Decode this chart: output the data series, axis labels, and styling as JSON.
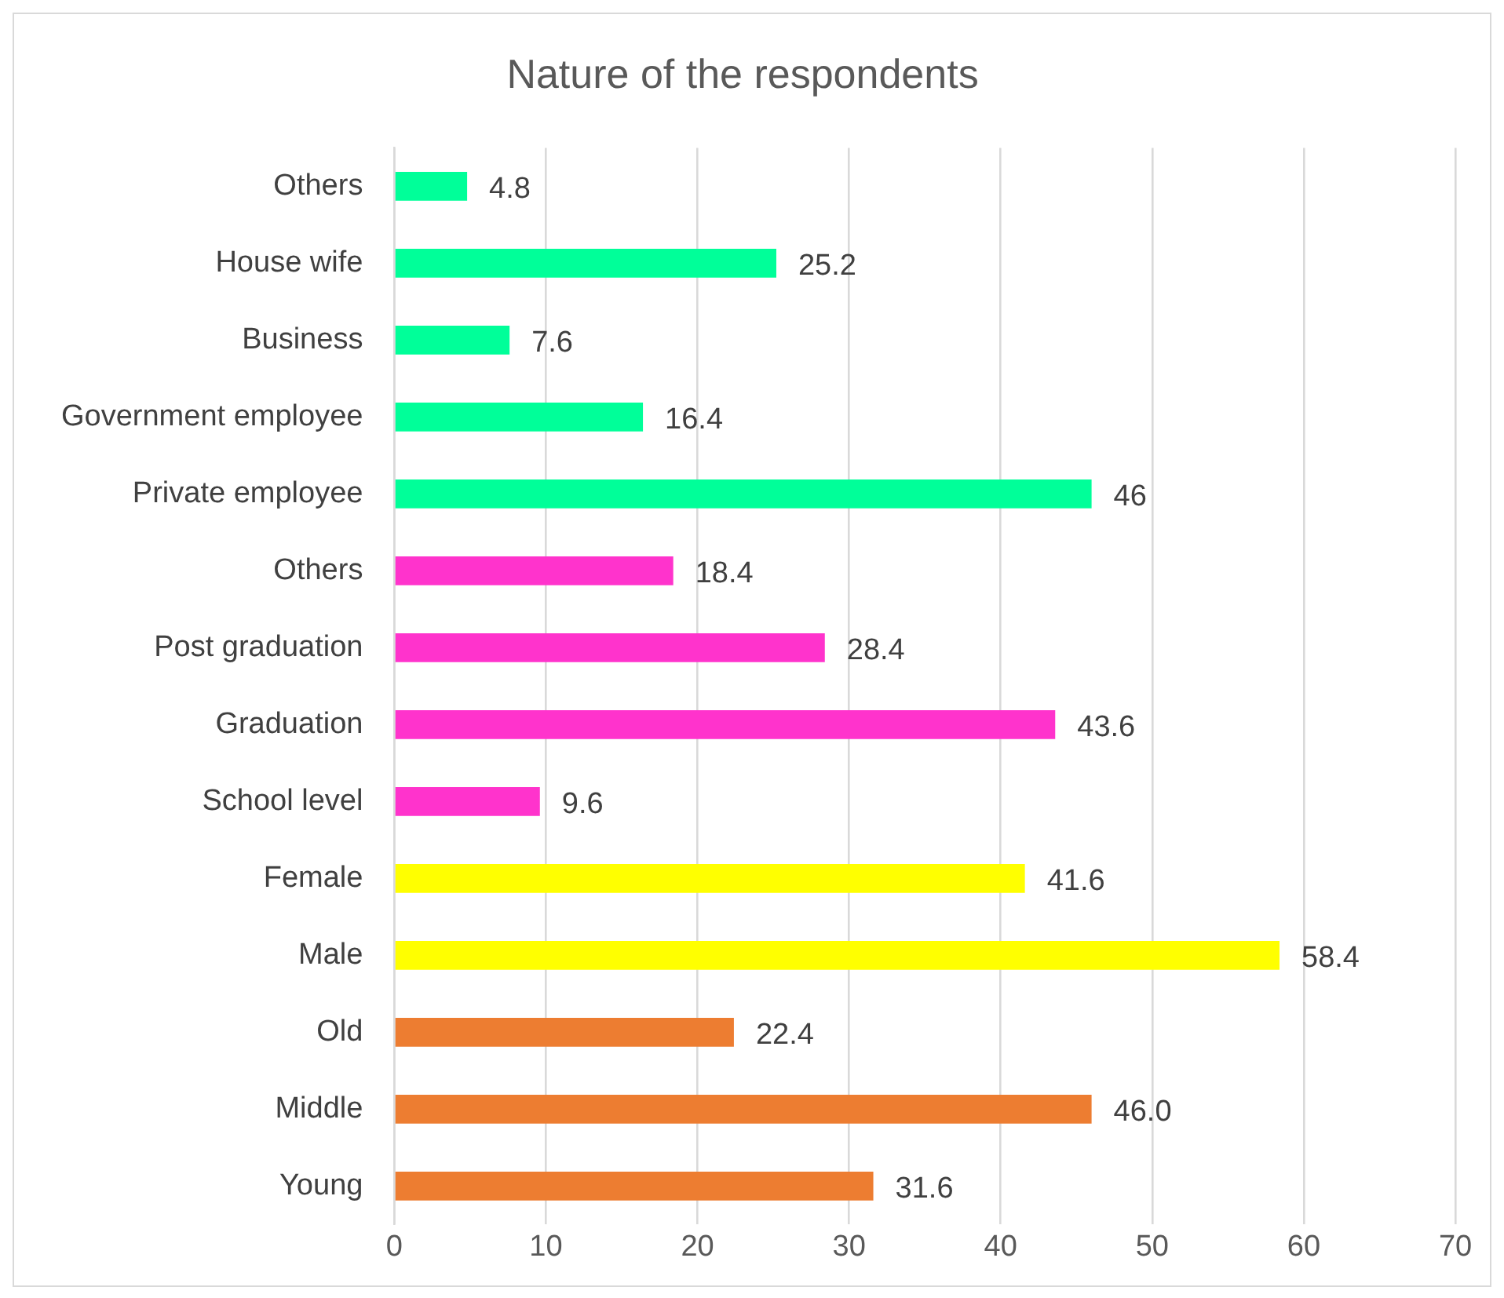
{
  "chart_data": {
    "type": "bar",
    "orientation": "horizontal",
    "title": "Nature of the respondents",
    "categories": [
      "Others",
      "House wife",
      "Business",
      "Government employee",
      "Private employee",
      "Others",
      "Post graduation",
      "Graduation",
      "School level",
      "Female",
      "Male",
      "Old",
      "Middle",
      "Young"
    ],
    "values": [
      4.8,
      25.2,
      7.6,
      16.4,
      46,
      18.4,
      28.4,
      43.6,
      9.6,
      41.6,
      58.4,
      22.4,
      46.0,
      31.6
    ],
    "value_labels": [
      "4.8",
      "25.2",
      "7.6",
      "16.4",
      "46",
      "18.4",
      "28.4",
      "43.6",
      "9.6",
      "41.6",
      "58.4",
      "22.4",
      "46.0",
      "31.6"
    ],
    "colors": [
      "#00ff99",
      "#00ff99",
      "#00ff99",
      "#00ff99",
      "#00ff99",
      "#ff33cc",
      "#ff33cc",
      "#ff33cc",
      "#ff33cc",
      "#ffff00",
      "#ffff00",
      "#ed7d31",
      "#ed7d31",
      "#ed7d31"
    ],
    "xlim": [
      0,
      70
    ],
    "xticks": [
      0,
      10,
      20,
      30,
      40,
      50,
      60,
      70
    ],
    "grid": "x",
    "legend": false
  }
}
